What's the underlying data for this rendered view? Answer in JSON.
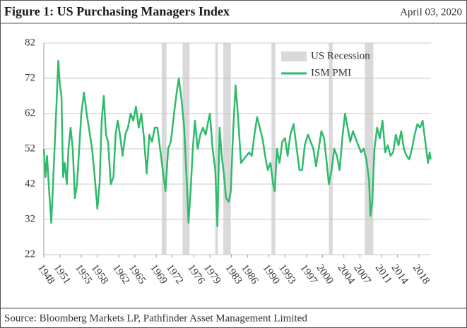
{
  "chart_data": {
    "type": "line",
    "title": "Figure 1: US Purchasing Managers Index",
    "date": "April 03, 2020",
    "source": "Source: Bloomberg Markets LP, Pathfinder Asset Management Limited",
    "x": [
      1948.0,
      1948.3,
      1948.6,
      1949.0,
      1949.4,
      1949.8,
      1950.3,
      1950.7,
      1951.0,
      1951.3,
      1951.6,
      1951.9,
      1952.3,
      1952.6,
      1953.0,
      1953.4,
      1953.8,
      1954.2,
      1954.6,
      1955.0,
      1955.5,
      1956.0,
      1956.5,
      1957.0,
      1957.5,
      1958.0,
      1958.4,
      1958.8,
      1959.2,
      1959.6,
      1960.0,
      1960.5,
      1961.0,
      1961.4,
      1961.8,
      1962.3,
      1962.7,
      1963.2,
      1963.7,
      1964.2,
      1964.7,
      1965.2,
      1965.7,
      1966.2,
      1966.7,
      1967.2,
      1967.7,
      1968.2,
      1968.7,
      1969.2,
      1969.7,
      1970.2,
      1970.7,
      1971.2,
      1971.7,
      1972.3,
      1972.8,
      1973.2,
      1973.7,
      1974.2,
      1974.7,
      1975.0,
      1975.4,
      1975.8,
      1976.2,
      1976.7,
      1977.2,
      1977.7,
      1978.2,
      1978.7,
      1979.0,
      1979.5,
      1980.0,
      1980.4,
      1980.8,
      1981.2,
      1981.6,
      1982.0,
      1982.5,
      1982.9,
      1983.3,
      1983.8,
      1984.3,
      1984.8,
      1985.3,
      1985.8,
      1986.3,
      1986.8,
      1987.3,
      1987.8,
      1988.3,
      1988.8,
      1989.3,
      1989.8,
      1990.3,
      1990.8,
      1991.1,
      1991.5,
      1992.0,
      1992.5,
      1993.0,
      1993.5,
      1994.0,
      1994.6,
      1995.2,
      1995.7,
      1996.2,
      1996.7,
      1997.3,
      1997.8,
      1998.3,
      1998.8,
      1999.3,
      1999.8,
      2000.3,
      2000.8,
      2001.2,
      2001.7,
      2002.2,
      2002.7,
      2003.2,
      2003.7,
      2004.2,
      2004.7,
      2005.2,
      2005.7,
      2006.2,
      2006.7,
      2007.2,
      2007.7,
      2008.2,
      2008.7,
      2008.95,
      2009.3,
      2009.7,
      2010.2,
      2010.7,
      2011.2,
      2011.7,
      2012.2,
      2012.7,
      2013.2,
      2013.7,
      2014.2,
      2014.7,
      2015.2,
      2015.7,
      2016.2,
      2016.7,
      2017.2,
      2017.7,
      2018.2,
      2018.7,
      2019.2,
      2019.7,
      2020.0,
      2020.2
    ],
    "series": [
      {
        "name": "ISM PMI",
        "color": "#2fba6c",
        "values": [
          52,
          44,
          50,
          40,
          31,
          45,
          62,
          77,
          70,
          67,
          44,
          48,
          42,
          52,
          58,
          52,
          38,
          42,
          52,
          62,
          68,
          62,
          57,
          52,
          44,
          35,
          42,
          60,
          67,
          56,
          54,
          42,
          44,
          56,
          60,
          55,
          50,
          56,
          58,
          62,
          60,
          64,
          58,
          62,
          55,
          45,
          56,
          54,
          58,
          58,
          52,
          46,
          40,
          52,
          54,
          62,
          68,
          72,
          66,
          58,
          42,
          31,
          40,
          52,
          60,
          52,
          56,
          58,
          56,
          60,
          62,
          52,
          46,
          30,
          58,
          50,
          45,
          38,
          37,
          40,
          56,
          70,
          60,
          48,
          49,
          50,
          51,
          50,
          56,
          61,
          58,
          55,
          50,
          46,
          48,
          42,
          40,
          52,
          48,
          54,
          55,
          50,
          56,
          59,
          52,
          46,
          46,
          53,
          56,
          54,
          52,
          47,
          52,
          57,
          55,
          48,
          42,
          46,
          52,
          50,
          46,
          55,
          62,
          58,
          54,
          57,
          55,
          53,
          51,
          52,
          49,
          43,
          33,
          37,
          52,
          58,
          55,
          60,
          51,
          53,
          50,
          51,
          56,
          53,
          57,
          52,
          50,
          49,
          52,
          56,
          59,
          58,
          60,
          54,
          48,
          51,
          49
        ]
      }
    ],
    "recessions": {
      "name": "US Recession",
      "color": "#d9d9d9",
      "periods": [
        [
          1970.0,
          1970.9
        ],
        [
          1973.9,
          1975.2
        ],
        [
          1980.0,
          1980.5
        ],
        [
          1981.5,
          1982.9
        ],
        [
          1990.5,
          1991.2
        ],
        [
          2001.2,
          2001.9
        ],
        [
          2007.9,
          2009.5
        ]
      ]
    },
    "xlim": [
      1948,
      2020.25
    ],
    "xticks": [
      1948,
      1951,
      1955,
      1958,
      1962,
      1965,
      1969,
      1972,
      1976,
      1979,
      1983,
      1986,
      1990,
      1993,
      1997,
      2000,
      2004,
      2007,
      2011,
      2014,
      2018
    ],
    "ylim": [
      22,
      82
    ],
    "yticks": [
      22,
      32,
      42,
      52,
      62,
      72,
      82
    ],
    "grid": true
  }
}
